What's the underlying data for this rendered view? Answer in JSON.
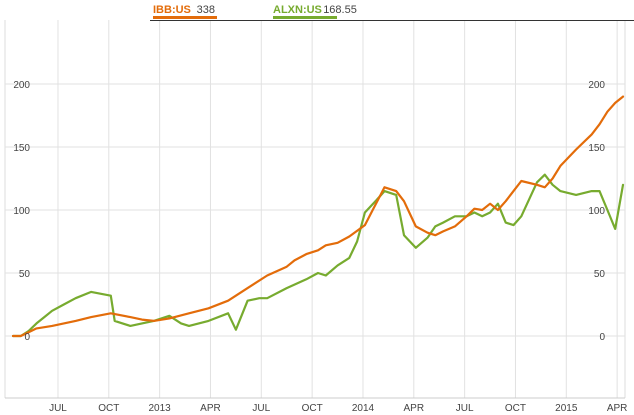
{
  "chart_data": {
    "type": "line",
    "title": "",
    "xlabel": "",
    "ylabel": "",
    "ylim": [
      -55,
      240
    ],
    "x_ticks": [
      "JUL",
      "OCT",
      "2013",
      "APR",
      "JUL",
      "OCT",
      "2014",
      "APR",
      "JUL",
      "OCT",
      "2015",
      "APR"
    ],
    "y_ticks": [
      0,
      50,
      100,
      150,
      200
    ],
    "grid": true,
    "legend_position": "top",
    "series": [
      {
        "name": "IBB:US",
        "last_value": "338",
        "color": "#e36c0a",
        "x": [
          0,
          2,
          4,
          6,
          8,
          10,
          13,
          16,
          20,
          25,
          30,
          33,
          36,
          40,
          45,
          50,
          55,
          60,
          65,
          70,
          72,
          75,
          78,
          80,
          83,
          86,
          90,
          92,
          95,
          98,
          100,
          103,
          106,
          108,
          110,
          113,
          116,
          118,
          120,
          122,
          124,
          126,
          128,
          130,
          134,
          136,
          138,
          140,
          144,
          148,
          150,
          152,
          154,
          156
        ],
        "y": [
          0,
          0,
          3,
          6,
          7,
          8,
          10,
          12,
          15,
          18,
          15,
          13,
          12,
          14,
          18,
          22,
          28,
          38,
          48,
          55,
          60,
          65,
          68,
          72,
          74,
          79,
          88,
          100,
          118,
          115,
          107,
          87,
          82,
          80,
          83,
          87,
          95,
          101,
          100,
          105,
          100,
          107,
          115,
          123,
          120,
          118,
          125,
          135,
          148,
          160,
          168,
          178,
          185,
          190
        ]
      },
      {
        "name": "ALXN:US",
        "last_value": "168.55",
        "color": "#77ab2f",
        "x": [
          0,
          2,
          4,
          6,
          8,
          10,
          13,
          16,
          20,
          25,
          26,
          30,
          33,
          36,
          40,
          43,
          45,
          50,
          55,
          57,
          60,
          63,
          65,
          70,
          75,
          78,
          80,
          83,
          86,
          88,
          90,
          93,
          95,
          98,
          100,
          103,
          106,
          108,
          110,
          113,
          116,
          118,
          120,
          122,
          124,
          126,
          128,
          130,
          134,
          136,
          138,
          140,
          144,
          148,
          150,
          152,
          154,
          156
        ],
        "y": [
          0,
          0,
          4,
          10,
          15,
          20,
          25,
          30,
          35,
          32,
          12,
          8,
          10,
          12,
          16,
          10,
          8,
          12,
          18,
          5,
          28,
          30,
          30,
          38,
          45,
          50,
          48,
          56,
          62,
          75,
          98,
          108,
          115,
          112,
          80,
          70,
          78,
          87,
          90,
          95,
          95,
          98,
          95,
          98,
          105,
          90,
          88,
          95,
          122,
          128,
          120,
          115,
          112,
          115,
          115,
          100,
          85,
          120
        ]
      }
    ]
  }
}
